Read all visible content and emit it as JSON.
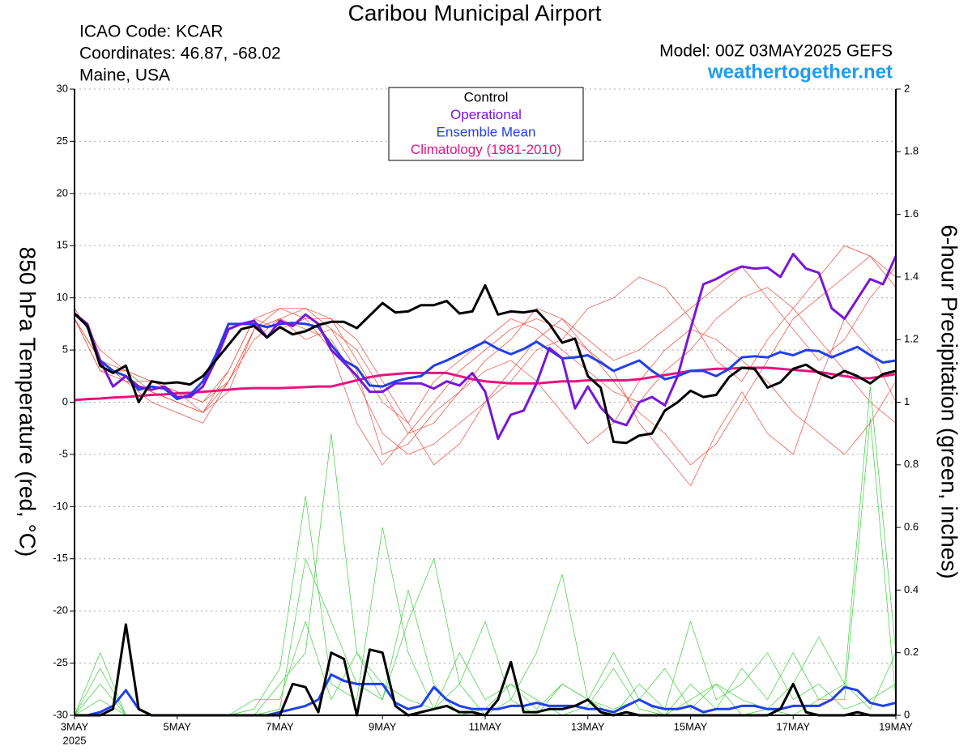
{
  "chart_data": {
    "type": "line",
    "title": "Caribou Municipal Airport",
    "info_left": [
      "ICAO Code: KCAR",
      "Coordinates: 46.87, -68.02",
      "Maine, USA"
    ],
    "info_right": [
      "Model: 00Z 03MAY2025 GEFS",
      "weathertogether.net"
    ],
    "ylabel": "850 hPa Temperature (red, °C)",
    "y2label": "6-hour Precipitation (green, inches)",
    "x_sublabel": "2025",
    "grid": true,
    "xlim": [
      3,
      19
    ],
    "xticks": [
      {
        "value": 3,
        "label": "3MAY"
      },
      {
        "value": 5,
        "label": "5MAY"
      },
      {
        "value": 7,
        "label": "7MAY"
      },
      {
        "value": 9,
        "label": "9MAY"
      },
      {
        "value": 11,
        "label": "11MAY"
      },
      {
        "value": 13,
        "label": "13MAY"
      },
      {
        "value": 15,
        "label": "15MAY"
      },
      {
        "value": 17,
        "label": "17MAY"
      },
      {
        "value": 19,
        "label": "19MAY"
      }
    ],
    "ylim": [
      -30,
      30
    ],
    "yticks": [
      -30,
      -25,
      -20,
      -15,
      -10,
      -5,
      0,
      5,
      10,
      15,
      20,
      25,
      30
    ],
    "y2lim": [
      0,
      2
    ],
    "y2ticks": [
      0,
      0.2,
      0.4,
      0.6,
      0.8,
      1,
      1.2,
      1.4,
      1.6,
      1.8,
      2
    ],
    "x": [
      3,
      3.25,
      3.5,
      3.75,
      4,
      4.25,
      4.5,
      4.75,
      5,
      5.25,
      5.5,
      5.75,
      6,
      6.25,
      6.5,
      6.75,
      7,
      7.25,
      7.5,
      7.75,
      8,
      8.25,
      8.5,
      8.75,
      9,
      9.25,
      9.5,
      9.75,
      10,
      10.25,
      10.5,
      10.75,
      11,
      11.25,
      11.5,
      11.75,
      12,
      12.25,
      12.5,
      12.75,
      13,
      13.25,
      13.5,
      13.75,
      14,
      14.25,
      14.5,
      14.75,
      15,
      15.25,
      15.5,
      15.75,
      16,
      16.25,
      16.5,
      16.75,
      17,
      17.25,
      17.5,
      17.75,
      18,
      18.25,
      18.5,
      18.75,
      19
    ],
    "series": [
      {
        "color": "#f04a3a",
        "linewidth": 0.7,
        "x": [
          3,
          3.5,
          4,
          4.5,
          5,
          5.5,
          6,
          6.5,
          7,
          7.5,
          8,
          8.5,
          9,
          9.5,
          10,
          10.5,
          11,
          11.5,
          12,
          12.5,
          13,
          13.5,
          14,
          14.5,
          15,
          15.5,
          16,
          16.5,
          17,
          17.5,
          18,
          18.5,
          19
        ],
        "values": [
          8,
          4,
          2,
          1,
          0,
          -1,
          2,
          7,
          8,
          7,
          6,
          2,
          -3,
          -5,
          -4,
          -2,
          0,
          3,
          6,
          8,
          5,
          2,
          -1,
          -3,
          -6,
          -4,
          0,
          4,
          8,
          10,
          12,
          14,
          12
        ]
      },
      {
        "color": "#f04a3a",
        "linewidth": 0.7,
        "x": [
          3,
          3.5,
          4,
          4.5,
          5,
          5.5,
          6,
          6.5,
          7,
          7.5,
          8,
          8.5,
          9,
          9.5,
          10,
          10.5,
          11,
          11.5,
          12,
          12.5,
          13,
          13.5,
          14,
          14.5,
          15,
          15.5,
          16,
          16.5,
          17,
          17.5,
          18,
          18.5,
          19
        ],
        "values": [
          8,
          3,
          3,
          2,
          1,
          0,
          3,
          8,
          7,
          8,
          8,
          4,
          0,
          -2,
          2,
          4,
          6,
          8,
          7,
          5,
          3,
          1,
          0,
          3,
          5,
          8,
          10,
          11,
          9,
          6,
          3,
          0,
          -2
        ]
      },
      {
        "color": "#f04a3a",
        "linewidth": 0.7,
        "x": [
          3,
          3.5,
          4,
          4.5,
          5,
          5.5,
          6,
          6.5,
          7,
          7.5,
          8,
          8.5,
          9,
          9.5,
          10,
          10.5,
          11,
          11.5,
          12,
          12.5,
          13,
          13.5,
          14,
          14.5,
          15,
          15.5,
          16,
          16.5,
          17,
          17.5,
          18,
          18.5,
          19
        ],
        "values": [
          8,
          4,
          2,
          0,
          -1,
          -2,
          2,
          6,
          8,
          6,
          7,
          3,
          -5,
          -4,
          -1,
          1,
          3,
          4,
          2,
          -1,
          -4,
          -2,
          2,
          5,
          7,
          6,
          4,
          2,
          -1,
          -3,
          -5,
          -2,
          2
        ]
      },
      {
        "color": "#f04a3a",
        "linewidth": 0.7,
        "x": [
          3,
          3.5,
          4,
          4.5,
          5,
          5.5,
          6,
          6.5,
          7,
          7.5,
          8,
          8.5,
          9,
          9.5,
          10,
          10.5,
          11,
          11.5,
          12,
          12.5,
          13,
          13.5,
          14,
          14.5,
          15,
          15.5,
          16,
          16.5,
          17,
          17.5,
          18,
          18.5,
          19
        ],
        "values": [
          9,
          5,
          3,
          2,
          1,
          -1,
          1,
          7,
          8,
          9,
          8,
          6,
          2,
          -2,
          -6,
          -4,
          0,
          2,
          5,
          6,
          9,
          10,
          12,
          11,
          8,
          4,
          2,
          6,
          9,
          12,
          15,
          14,
          11
        ]
      },
      {
        "color": "#f04a3a",
        "linewidth": 0.7,
        "x": [
          3,
          3.5,
          4,
          4.5,
          5,
          5.5,
          6,
          6.5,
          7,
          7.5,
          8,
          8.5,
          9,
          9.5,
          10,
          10.5,
          11,
          11.5,
          12,
          12.5,
          13,
          13.5,
          14,
          14.5,
          15,
          15.5,
          16,
          16.5,
          17,
          17.5,
          18,
          18.5,
          19
        ],
        "values": [
          8,
          4,
          3,
          1,
          0,
          -1,
          3,
          8,
          9,
          8,
          5,
          -2,
          -6,
          -3,
          0,
          3,
          5,
          7,
          8,
          7,
          5,
          3,
          -2,
          -5,
          -8,
          -3,
          1,
          -3,
          -5,
          2,
          8,
          5,
          0
        ]
      },
      {
        "color": "#f04a3a",
        "linewidth": 0.7,
        "x": [
          3,
          3.5,
          4,
          4.5,
          5,
          5.5,
          6,
          6.5,
          7,
          7.5,
          8,
          8.5,
          9,
          9.5,
          10,
          10.5,
          11,
          11.5,
          12,
          12.5,
          13,
          13.5,
          14,
          14.5,
          15,
          15.5,
          16,
          16.5,
          17,
          17.5,
          18,
          18.5,
          19
        ],
        "values": [
          8,
          3,
          2,
          2,
          1,
          0,
          2,
          7,
          9,
          9,
          7,
          5,
          1,
          -3,
          -2,
          1,
          4,
          6,
          9,
          8,
          6,
          4,
          5,
          7,
          9,
          11,
          13,
          10,
          7,
          4,
          6,
          10,
          13
        ]
      },
      {
        "color": "#3ccf3c",
        "linewidth": 0.7,
        "axis": "y2",
        "x": [
          3,
          3.5,
          4,
          4.5,
          5,
          5.5,
          6,
          6.5,
          7,
          7.5,
          8,
          8.5,
          9,
          9.5,
          10,
          10.5,
          11,
          11.5,
          12,
          12.5,
          13,
          13.5,
          14,
          14.5,
          15,
          15.5,
          16,
          16.5,
          17,
          17.5,
          18,
          18.5,
          19
        ],
        "values": [
          0,
          0.1,
          0,
          0,
          0,
          0,
          0,
          0,
          0.02,
          0.5,
          0.3,
          0.1,
          0.05,
          0.4,
          0.1,
          0,
          0.02,
          0.1,
          0.05,
          0,
          0.03,
          0.15,
          0.02,
          0,
          0.05,
          0.1,
          0,
          0.02,
          0,
          0.05,
          0.1,
          0.02,
          0.2
        ]
      },
      {
        "color": "#3ccf3c",
        "linewidth": 0.7,
        "axis": "y2",
        "x": [
          3,
          3.5,
          4,
          4.5,
          5,
          5.5,
          6,
          6.5,
          7,
          7.5,
          8,
          8.5,
          9,
          9.5,
          10,
          10.5,
          11,
          11.5,
          12,
          12.5,
          13,
          13.5,
          14,
          14.5,
          15,
          15.5,
          16,
          16.5,
          17,
          17.5,
          18,
          18.5,
          19
        ],
        "values": [
          0,
          0.2,
          0,
          0,
          0,
          0,
          0,
          0,
          0.1,
          0.2,
          0.9,
          0.2,
          0.05,
          0.3,
          0.5,
          0.1,
          0,
          0.05,
          0.2,
          0.45,
          0.05,
          0,
          0.1,
          0.02,
          0.3,
          0.05,
          0.1,
          0.2,
          0.05,
          0.1,
          0.02,
          0.05,
          0.1
        ]
      },
      {
        "color": "#3ccf3c",
        "linewidth": 0.7,
        "axis": "y2",
        "x": [
          3,
          3.5,
          4,
          4.5,
          5,
          5.5,
          6,
          6.5,
          7,
          7.5,
          8,
          8.5,
          9,
          9.5,
          10,
          10.5,
          11,
          11.5,
          12,
          12.5,
          13,
          13.5,
          14,
          14.5,
          15,
          15.5,
          16,
          16.5,
          17,
          17.5,
          18,
          18.5,
          19
        ],
        "values": [
          0,
          0.05,
          0,
          0,
          0,
          0,
          0,
          0.02,
          0.15,
          0.7,
          0.1,
          0.05,
          0.6,
          0.2,
          0.02,
          0.1,
          0.3,
          0.05,
          0,
          0.1,
          0.05,
          0.2,
          0.05,
          0,
          0.1,
          0.02,
          0.15,
          0.05,
          0.2,
          0.05,
          0.05,
          0.95,
          0.05
        ]
      },
      {
        "color": "#3ccf3c",
        "linewidth": 0.7,
        "axis": "y2",
        "x": [
          3,
          3.5,
          4,
          4.5,
          5,
          5.5,
          6,
          6.5,
          7,
          7.5,
          8,
          8.5,
          9,
          9.5,
          10,
          10.5,
          11,
          11.5,
          12,
          12.5,
          13,
          13.5,
          14,
          14.5,
          15,
          15.5,
          16,
          16.5,
          17,
          17.5,
          18,
          18.5,
          19
        ],
        "values": [
          0,
          0.15,
          0,
          0,
          0,
          0,
          0,
          0.05,
          0.05,
          0.3,
          0.05,
          0.2,
          0.1,
          0.05,
          0.02,
          0.2,
          0.05,
          0.1,
          0.02,
          0.1,
          0.05,
          0.02,
          0.05,
          0.15,
          0.02,
          0.1,
          0.05,
          0.02,
          0.1,
          0.25,
          0.1,
          1.05,
          0.2
        ]
      },
      {
        "color": "#2040e8",
        "linewidth": 3,
        "axis": "y2",
        "values": [
          0,
          0,
          0.01,
          0.03,
          0.08,
          0.02,
          0,
          0,
          0,
          0,
          0,
          0,
          0,
          0,
          0,
          0,
          0.01,
          0.02,
          0.03,
          0.05,
          0.13,
          0.11,
          0.1,
          0.1,
          0.1,
          0.04,
          0.02,
          0.03,
          0.09,
          0.05,
          0.03,
          0.02,
          0.02,
          0.02,
          0.03,
          0.03,
          0.04,
          0.03,
          0.03,
          0.03,
          0.02,
          0.02,
          0.01,
          0.03,
          0.05,
          0.03,
          0.02,
          0.02,
          0.03,
          0.01,
          0.02,
          0.02,
          0.03,
          0.03,
          0.02,
          0.02,
          0.03,
          0.03,
          0.03,
          0.05,
          0.09,
          0.08,
          0.04,
          0.03,
          0.04
        ]
      },
      {
        "color": "#000000",
        "linewidth": 3,
        "axis": "y2",
        "values": [
          0,
          0,
          0,
          0.02,
          0.29,
          0.02,
          0,
          0,
          0,
          0,
          0,
          0,
          0,
          0,
          0,
          0,
          0,
          0.1,
          0.09,
          0.01,
          0.2,
          0.18,
          0,
          0.21,
          0.2,
          0.03,
          0,
          0.01,
          0.02,
          0.03,
          0.01,
          0.01,
          0,
          0.05,
          0.17,
          0.01,
          0.01,
          0.02,
          0.02,
          0.03,
          0.05,
          0.01,
          0,
          0.01,
          0,
          0,
          0,
          0,
          0,
          0,
          0,
          0,
          0,
          0,
          0,
          0.02,
          0.1,
          0.01,
          0,
          0,
          0,
          0.01,
          0,
          0,
          0
        ]
      },
      {
        "name": "Climatology (1981-2010)",
        "color": "#e8137f",
        "linewidth": 3,
        "values": [
          0.2,
          0.3,
          0.35,
          0.45,
          0.5,
          0.6,
          0.7,
          0.75,
          0.85,
          0.9,
          1.0,
          1.1,
          1.2,
          1.3,
          1.35,
          1.35,
          1.35,
          1.4,
          1.45,
          1.5,
          1.5,
          1.8,
          2.1,
          2.4,
          2.6,
          2.7,
          2.8,
          2.8,
          2.8,
          2.8,
          2.5,
          2.2,
          2.0,
          1.9,
          1.8,
          1.8,
          1.8,
          1.9,
          2.0,
          2.0,
          2.1,
          2.1,
          2.1,
          2.1,
          2.2,
          2.4,
          2.6,
          2.8,
          3.0,
          3.1,
          3.2,
          3.2,
          3.3,
          3.3,
          3.3,
          3.2,
          3.1,
          3.0,
          2.9,
          2.7,
          2.5,
          2.3,
          2.3,
          2.5,
          2.7
        ]
      },
      {
        "name": "Ensemble Mean",
        "color": "#2040e8",
        "linewidth": 3,
        "values": [
          8.5,
          7.3,
          4,
          3,
          2.5,
          1.2,
          1.5,
          1.3,
          0.3,
          0.7,
          2,
          4.5,
          7.5,
          7.5,
          7.5,
          7.2,
          7.5,
          7.6,
          7.5,
          7.2,
          5.5,
          4,
          3.3,
          1.6,
          1.5,
          2,
          2.3,
          2.5,
          3.5,
          4,
          4.6,
          5.2,
          5.8,
          5.1,
          4.6,
          5.1,
          5.8,
          5,
          4.2,
          4.3,
          4.5,
          3.8,
          3,
          3.5,
          4,
          3,
          2.2,
          2.5,
          3,
          3,
          2.5,
          3.2,
          4.3,
          4.4,
          4.3,
          4.8,
          4.5,
          5,
          4.9,
          4.3,
          4.8,
          5.3,
          4.5,
          3.8,
          4
        ]
      },
      {
        "name": "Operational",
        "color": "#7a16d8",
        "linewidth": 3,
        "values": [
          8.5,
          7.5,
          4,
          1.5,
          2.5,
          1.5,
          1.2,
          1.5,
          0.5,
          0.5,
          1.5,
          4,
          7,
          7.5,
          7.8,
          6.2,
          7.8,
          7.3,
          8.4,
          7.5,
          5,
          3.8,
          2.5,
          1.0,
          1.0,
          1.8,
          1.8,
          1.8,
          1.3,
          2.0,
          1.6,
          2.8,
          1.0,
          -3.5,
          -1.2,
          -0.8,
          1.8,
          5.2,
          4.2,
          -0.6,
          1.5,
          -0.5,
          -1.8,
          -2.2,
          0,
          0.5,
          -0.3,
          2.5,
          7,
          11.3,
          11.8,
          12.5,
          13,
          12.8,
          12.9,
          12,
          14.2,
          12.8,
          12.4,
          9,
          8,
          9.9,
          11.8,
          11.3,
          14
        ]
      },
      {
        "name": "Control",
        "color": "#000000",
        "linewidth": 3,
        "values": [
          8.5,
          7.3,
          3.5,
          2.8,
          3.5,
          0,
          2,
          1.8,
          1.9,
          1.7,
          2.5,
          4,
          5.5,
          7,
          7.3,
          6.2,
          7.2,
          6.5,
          6.8,
          7.4,
          7.7,
          7.7,
          7.1,
          8.3,
          9.5,
          8.6,
          8.7,
          9.3,
          9.3,
          9.7,
          8.5,
          8.7,
          11.2,
          8.4,
          8.7,
          8.6,
          8.8,
          7.5,
          5.7,
          6.1,
          2.5,
          1.4,
          -3.8,
          -3.9,
          -3.2,
          -3,
          -0.8,
          0,
          1.1,
          0.5,
          0.7,
          2.4,
          3.3,
          3.2,
          1.4,
          1.9,
          3.2,
          3.6,
          2.8,
          2.3,
          3.0,
          2.5,
          1.8,
          2.7,
          3.0
        ]
      }
    ]
  }
}
